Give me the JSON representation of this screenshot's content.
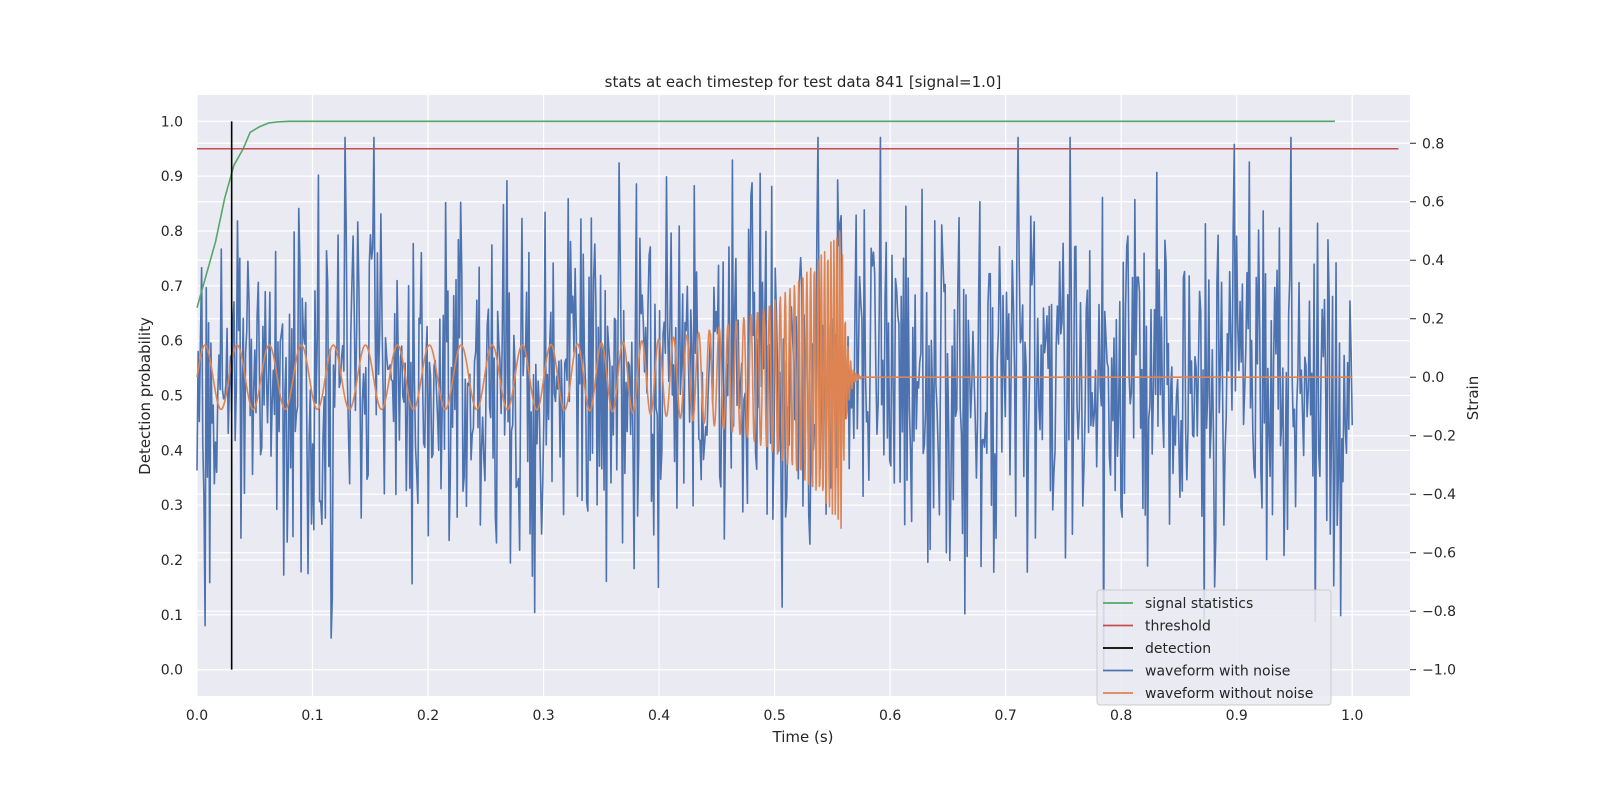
{
  "chart_data": {
    "type": "line",
    "title": "stats at each timestep for test data 841 [signal=1.0]",
    "xlabel": "Time (s)",
    "ylabel_left": "Detection probability",
    "ylabel_right": "Strain",
    "xlim": [
      0.0,
      1.05
    ],
    "ylim_left": [
      -0.048,
      1.048
    ],
    "ylim_right": [
      -1.09,
      0.965
    ],
    "x_ticks": [
      "0.0",
      "0.1",
      "0.2",
      "0.3",
      "0.4",
      "0.5",
      "0.6",
      "0.7",
      "0.8",
      "0.9",
      "1.0"
    ],
    "y_ticks_left": [
      "0.0",
      "0.1",
      "0.2",
      "0.3",
      "0.4",
      "0.5",
      "0.6",
      "0.7",
      "0.8",
      "0.9",
      "1.0"
    ],
    "y_ticks_right": [
      "−1.0",
      "−0.8",
      "−0.6",
      "−0.4",
      "−0.2",
      "0.0",
      "0.2",
      "0.4",
      "0.6",
      "0.8"
    ],
    "grid": true,
    "legend_position": "lower-right",
    "background": "#eaeaf2",
    "series": [
      {
        "name": "signal statistics",
        "color": "#55a868",
        "axis": "left",
        "x": [
          0.0,
          0.008,
          0.016,
          0.024,
          0.032,
          0.04,
          0.046,
          0.054,
          0.062,
          0.07,
          0.08,
          0.1,
          0.2,
          0.4,
          0.6,
          0.8,
          0.985
        ],
        "y": [
          0.66,
          0.72,
          0.78,
          0.86,
          0.92,
          0.95,
          0.98,
          0.99,
          0.997,
          0.999,
          1.0,
          1.0,
          1.0,
          1.0,
          1.0,
          1.0,
          1.0
        ]
      },
      {
        "name": "threshold",
        "color": "#c44e52",
        "axis": "left",
        "x": [
          0.0,
          1.04
        ],
        "y": [
          0.95,
          0.95
        ]
      },
      {
        "name": "detection",
        "color": "#000000",
        "axis": "left",
        "x": [
          0.03,
          0.03
        ],
        "y": [
          0.0,
          1.0
        ]
      },
      {
        "name": "waveform with noise",
        "color": "#4c72b0",
        "axis": "right",
        "generator": "noise",
        "x_range": [
          0.0,
          1.0
        ],
        "points": 1000,
        "std": 0.32,
        "clip": [
          -1.0,
          0.82
        ]
      },
      {
        "name": "waveform without noise",
        "color": "#dd8452",
        "axis": "right",
        "generator": "chirp",
        "x_range": [
          0.0,
          1.0
        ],
        "merger_time": 0.558,
        "ringdown_end": 0.575,
        "amp_start": 0.11,
        "amp_peak": 0.52,
        "freq_start_hz": 36,
        "freq_peak_hz": 420
      }
    ]
  }
}
